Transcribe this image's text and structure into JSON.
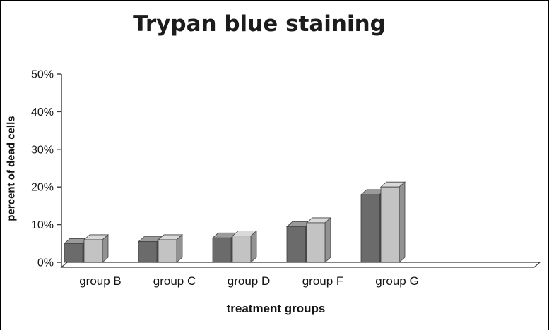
{
  "chart_data": {
    "type": "bar",
    "style": "3d",
    "title": "Trypan blue staining",
    "xlabel": "treatment groups",
    "ylabel": "percent of dead cells",
    "categories": [
      "group B",
      "group C",
      "group D",
      "group F",
      "group G"
    ],
    "series": [
      {
        "label": "dark-gray-bars",
        "front_color": "#6b6b6b",
        "top_color": "#9a9a9a",
        "side_color": "#4f4f4f",
        "values": [
          5,
          5.5,
          6.5,
          9.5,
          18
        ]
      },
      {
        "label": "light-gray-bars",
        "front_color": "#c3c3c3",
        "top_color": "#d9d9d9",
        "side_color": "#929292",
        "values": [
          6,
          6,
          7,
          10.5,
          20
        ]
      }
    ],
    "ylim": [
      0,
      50
    ],
    "yticks_percent": [
      0,
      10,
      20,
      30,
      40,
      50
    ],
    "ytick_labels": [
      "0%",
      "10%",
      "20%",
      "30%",
      "40%",
      "50%"
    ],
    "grid": false,
    "legend": false
  }
}
